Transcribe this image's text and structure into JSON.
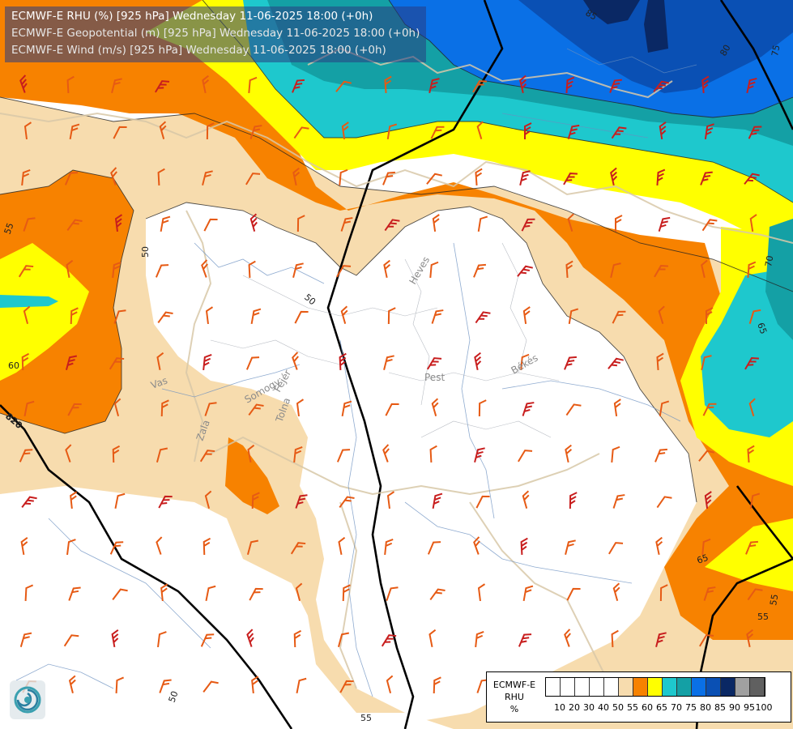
{
  "header": {
    "lines": [
      "ECMWF-E RHU (%) [925 hPa] Wednesday 11-06-2025 18:00 (+0h)",
      "ECMWF-E Geopotential (m) [925 hPa] Wednesday 11-06-2025 18:00 (+0h)",
      "ECMWF-E Wind (m/s) [925 hPa] Wednesday 11-06-2025 18:00 (+0h)"
    ]
  },
  "legend": {
    "lines": [
      "ECMWF-E",
      "RHU",
      "%"
    ],
    "ticks": [
      "10",
      "20",
      "30",
      "40",
      "50",
      "55",
      "60",
      "65",
      "70",
      "75",
      "80",
      "85",
      "90",
      "95",
      "100"
    ],
    "colors": [
      "#ffffff",
      "#ffffff",
      "#ffffff",
      "#ffffff",
      "#ffffff",
      "#f7dcae",
      "#f78200",
      "#ffff00",
      "#1ec8cd",
      "#14a0a5",
      "#0a70e6",
      "#0a50b4",
      "#0a2864",
      "#a0a0a0",
      "#606060"
    ]
  },
  "map": {
    "contour_labels": [
      "85",
      "80",
      "75",
      "70",
      "65",
      "55",
      "50",
      "50",
      "60",
      "65",
      "55",
      "55",
      "50",
      "55",
      "80",
      "820"
    ],
    "place_labels": [
      "Heves",
      "Pest",
      "Békés",
      "Vas",
      "Somogy",
      "Fejér",
      "Zala",
      "Tolna"
    ],
    "colors": {
      "land": "#ffffff",
      "rhu55": "#f7dcae",
      "rhu60": "#f78200",
      "rhu65": "#ffff00",
      "rhu70": "#1ec8cd",
      "rhu75": "#14a0a5",
      "rhu80": "#0a70e6",
      "rhu85": "#0a50b4",
      "rhu90": "#0a2864",
      "wind": "#e65a14",
      "wind_strong": "#c81e1e",
      "geopotential": "#000000"
    }
  }
}
